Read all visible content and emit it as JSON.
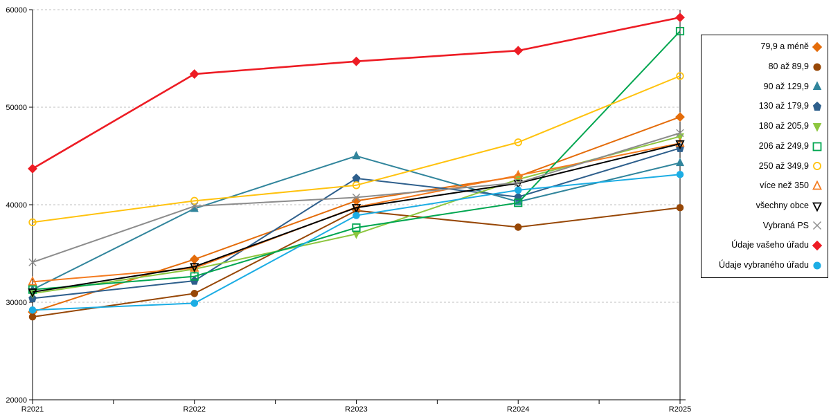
{
  "chart_data": {
    "type": "line",
    "title": "",
    "xlabel": "",
    "ylabel": "",
    "x_categories": [
      "R2021",
      "R2022",
      "R2023",
      "R2024",
      "R2025"
    ],
    "ylim": [
      20000,
      60000
    ],
    "yticks": [
      20000,
      30000,
      40000,
      50000,
      60000
    ],
    "grid": "horizontal-dashed",
    "legend_position": "right-outside",
    "series": [
      {
        "name": "79,9 a méně",
        "color": "#E46C0A",
        "marker": "diamond",
        "fill": "filled",
        "values": [
          29000,
          34400,
          40400,
          42900,
          49000
        ]
      },
      {
        "name": "80 až 89,9",
        "color": "#974706",
        "marker": "circle",
        "fill": "filled",
        "values": [
          28500,
          30900,
          39400,
          37700,
          39700
        ]
      },
      {
        "name": "90 až 129,9",
        "color": "#31859C",
        "marker": "triangle-up",
        "fill": "filled",
        "values": [
          31300,
          39600,
          45000,
          40300,
          44300
        ]
      },
      {
        "name": "130 až 179,9",
        "color": "#2E5F8C",
        "marker": "pentagon",
        "fill": "filled",
        "values": [
          30400,
          32200,
          42700,
          40800,
          45800
        ]
      },
      {
        "name": "180 až 205,9",
        "color": "#8DC63F",
        "marker": "triangle-down",
        "fill": "filled",
        "values": [
          30900,
          33400,
          37000,
          42600,
          47000
        ]
      },
      {
        "name": "206 až 249,9",
        "color": "#00A650",
        "marker": "square",
        "fill": "open",
        "values": [
          31300,
          32650,
          37650,
          40200,
          57800
        ]
      },
      {
        "name": "250 až 349,9",
        "color": "#FFC20E",
        "marker": "circle",
        "fill": "open",
        "values": [
          38200,
          40400,
          42000,
          46400,
          53200
        ]
      },
      {
        "name": "více než 350",
        "color": "#F47B20",
        "marker": "triangle-up",
        "fill": "open",
        "values": [
          32100,
          33500,
          39750,
          43000,
          46300
        ]
      },
      {
        "name": "všechny obce",
        "color": "#000000",
        "marker": "triangle-down",
        "fill": "open",
        "values": [
          31050,
          33650,
          39700,
          42200,
          46250
        ]
      },
      {
        "name": "Vybraná PS",
        "color": "#8C8C8C",
        "marker": "x",
        "fill": "open",
        "values": [
          34100,
          39850,
          40750,
          42250,
          47350
        ]
      },
      {
        "name": "Údaje vašeho úřadu",
        "color": "#ED1C24",
        "marker": "diamond",
        "fill": "filled",
        "values": [
          43700,
          53400,
          54700,
          55800,
          59200
        ]
      },
      {
        "name": "Údaje vybraného úřadu",
        "color": "#1CADE4",
        "marker": "circle",
        "fill": "filled",
        "values": [
          29200,
          29900,
          38900,
          41500,
          43100
        ]
      }
    ]
  }
}
